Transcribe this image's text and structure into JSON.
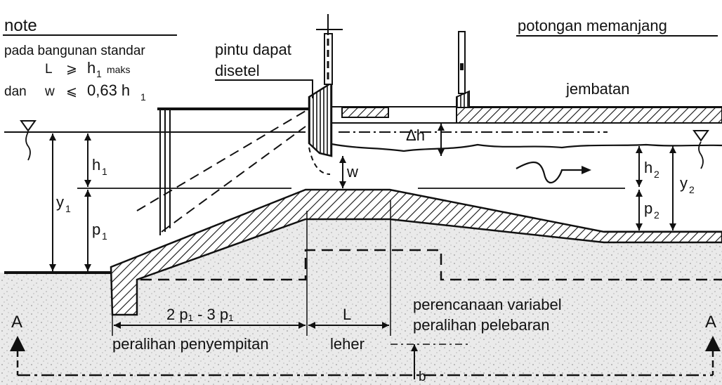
{
  "note": {
    "title": "note",
    "line1": "pada bangunan standar",
    "l_symbol": "L",
    "geq": "⩾",
    "h1_maks": "h",
    "h1_sub": "1",
    "maks": "maks",
    "dan": "dan",
    "w_symbol": "w",
    "leq": "⩽",
    "ratio": "0,63 h",
    "ratio_sub": "1"
  },
  "header": {
    "title": "potongan memanjang"
  },
  "labels": {
    "pintu_line1": "pintu dapat",
    "pintu_line2": "disetel",
    "jembatan": "jembatan",
    "delta_h": "Δh",
    "w": "w",
    "h1": "h",
    "h1_sub": "1",
    "y1": "y",
    "y1_sub": "1",
    "p1": "p",
    "p1_sub": "1",
    "h2": "h",
    "h2_sub": "2",
    "y2": "y",
    "y2_sub": "2",
    "p2": "p",
    "p2_sub": "2",
    "dim_2p1_3p1": "2 p₁ - 3 p₁",
    "dim_L": "L",
    "peralihan_penyempitan": "peralihan penyempitan",
    "leher": "leher",
    "variabel_line1": "perencanaan variabel",
    "variabel_line2": "peralihan pelebaran",
    "section_left": "A",
    "section_right": "A",
    "b": "b"
  }
}
